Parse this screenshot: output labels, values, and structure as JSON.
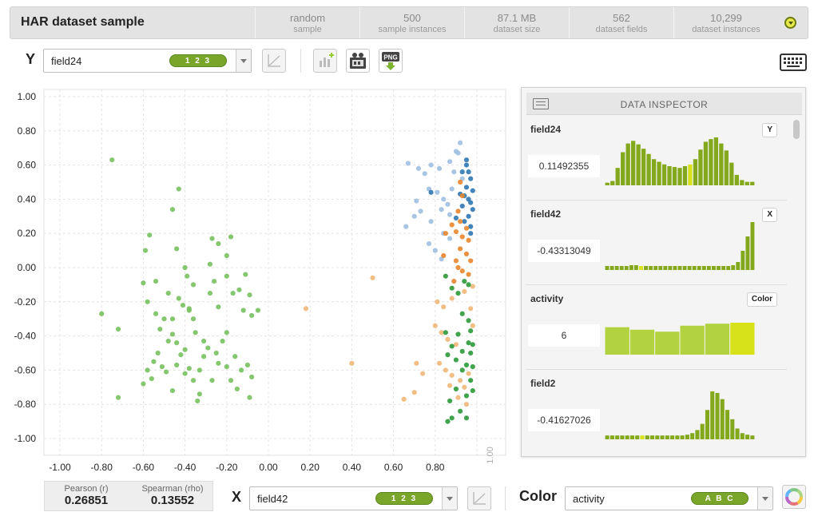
{
  "header": {
    "title": "HAR dataset sample",
    "stats": [
      {
        "value": "random",
        "label": "sample"
      },
      {
        "value": "500",
        "label": "sample instances"
      },
      {
        "value": "87.1 MB",
        "label": "dataset size"
      },
      {
        "value": "562",
        "label": "dataset fields"
      },
      {
        "value": "10,299",
        "label": "dataset instances"
      }
    ]
  },
  "y_axis": {
    "letter": "Y",
    "field": "field24",
    "type_badge": "1 2 3"
  },
  "x_axis": {
    "letter": "X",
    "field": "field42",
    "type_badge": "1 2 3"
  },
  "color": {
    "label": "Color",
    "field": "activity",
    "type_badge": "A B C"
  },
  "toolbar_icons": [
    "regression-line-icon",
    "add-chart-icon",
    "movie-icon",
    "png-export-icon",
    "keyboard-icon"
  ],
  "correlation": {
    "pearson_label": "Pearson (r)",
    "pearson_value": "0.26851",
    "spearman_label": "Spearman (rho)",
    "spearman_value": "0.13552"
  },
  "inspector": {
    "title": "DATA INSPECTOR",
    "fields": [
      {
        "name": "field24",
        "badge": "Y",
        "value": "0.11492355",
        "hist": [
          3,
          5,
          20,
          38,
          48,
          51,
          47,
          42,
          36,
          30,
          27,
          24,
          22,
          21,
          20,
          22,
          24,
          30,
          41,
          50,
          53,
          55,
          48,
          40,
          26,
          12,
          6,
          4,
          4
        ],
        "highlight": 16
      },
      {
        "name": "field42",
        "badge": "X",
        "value": "-0.43313049",
        "hist": [
          5,
          5,
          5,
          5,
          5,
          6,
          6,
          5,
          5,
          5,
          5,
          5,
          5,
          5,
          5,
          5,
          5,
          5,
          5,
          5,
          5,
          5,
          5,
          5,
          5,
          5,
          6,
          10,
          24,
          42,
          60
        ],
        "highlight": 7
      },
      {
        "name": "activity",
        "badge": "Color",
        "value": "6",
        "hist": [
          55,
          50,
          46,
          58,
          62,
          64
        ],
        "highlight": 5
      },
      {
        "name": "field2",
        "badge": "",
        "value": "-0.41627026",
        "hist": [
          5,
          5,
          5,
          5,
          5,
          5,
          5,
          5,
          5,
          5,
          5,
          5,
          5,
          5,
          5,
          5,
          6,
          8,
          12,
          20,
          38,
          62,
          60,
          52,
          38,
          26,
          14,
          8,
          6,
          5
        ],
        "highlight": 7
      }
    ]
  },
  "colors": {
    "green": "#77c15e",
    "light_blue": "#9fbfe0",
    "dark_blue": "#2f78b4",
    "orange": "#e8862e",
    "light_orange": "#f0b878",
    "dark_green": "#2c9a3a"
  },
  "chart_data": {
    "type": "scatter",
    "xlim": [
      -1.0,
      1.0
    ],
    "ylim": [
      -1.0,
      1.0
    ],
    "x_ticks": [
      "-1.00",
      "-0.80",
      "-0.60",
      "-0.40",
      "-0.20",
      "0.00",
      "0.20",
      "0.40",
      "0.60",
      "0.80",
      "1.00"
    ],
    "y_ticks": [
      "1.00",
      "0.80",
      "0.60",
      "0.40",
      "0.20",
      "0.00",
      "-0.20",
      "-0.40",
      "-0.60",
      "-0.80",
      "-1.00"
    ],
    "grid": true,
    "series": [
      {
        "color": "#77c15e",
        "points": [
          [
            -0.75,
            0.63
          ],
          [
            -0.8,
            -0.27
          ],
          [
            -0.72,
            -0.36
          ],
          [
            -0.72,
            -0.76
          ],
          [
            -0.43,
            0.46
          ],
          [
            -0.46,
            0.34
          ],
          [
            -0.57,
            0.19
          ],
          [
            -0.59,
            0.1
          ],
          [
            -0.44,
            0.11
          ],
          [
            -0.4,
            0.0
          ],
          [
            -0.39,
            -0.05
          ],
          [
            -0.6,
            -0.09
          ],
          [
            -0.58,
            -0.2
          ],
          [
            -0.54,
            -0.27
          ],
          [
            -0.5,
            -0.3
          ],
          [
            -0.52,
            -0.36
          ],
          [
            -0.48,
            -0.43
          ],
          [
            -0.44,
            -0.44
          ],
          [
            -0.46,
            -0.3
          ],
          [
            -0.43,
            -0.18
          ],
          [
            -0.41,
            -0.22
          ],
          [
            -0.38,
            -0.25
          ],
          [
            -0.36,
            -0.3
          ],
          [
            -0.35,
            -0.38
          ],
          [
            -0.4,
            -0.48
          ],
          [
            -0.42,
            -0.51
          ],
          [
            -0.44,
            -0.57
          ],
          [
            -0.49,
            -0.61
          ],
          [
            -0.53,
            -0.5
          ],
          [
            -0.55,
            -0.55
          ],
          [
            -0.58,
            -0.6
          ],
          [
            -0.6,
            -0.68
          ],
          [
            -0.56,
            -0.65
          ],
          [
            -0.51,
            -0.58
          ],
          [
            -0.46,
            -0.72
          ],
          [
            -0.38,
            -0.59
          ],
          [
            -0.36,
            -0.66
          ],
          [
            -0.33,
            -0.6
          ],
          [
            -0.31,
            -0.52
          ],
          [
            -0.29,
            -0.47
          ],
          [
            -0.33,
            -0.74
          ],
          [
            -0.34,
            -0.78
          ],
          [
            -0.27,
            -0.66
          ],
          [
            -0.25,
            -0.5
          ],
          [
            -0.22,
            -0.43
          ],
          [
            -0.2,
            -0.38
          ],
          [
            -0.24,
            -0.23
          ],
          [
            -0.28,
            -0.15
          ],
          [
            -0.26,
            -0.08
          ],
          [
            -0.28,
            0.02
          ],
          [
            -0.27,
            0.17
          ],
          [
            -0.24,
            0.14
          ],
          [
            -0.2,
            0.07
          ],
          [
            -0.18,
            0.18
          ],
          [
            -0.17,
            -0.15
          ],
          [
            -0.2,
            -0.05
          ],
          [
            -0.14,
            -0.13
          ],
          [
            -0.12,
            -0.25
          ],
          [
            -0.09,
            -0.16
          ],
          [
            -0.08,
            -0.28
          ],
          [
            -0.05,
            -0.25
          ],
          [
            -0.11,
            -0.04
          ],
          [
            -0.08,
            -0.64
          ],
          [
            -0.09,
            -0.76
          ],
          [
            -0.15,
            -0.71
          ],
          [
            -0.18,
            -0.66
          ],
          [
            -0.2,
            -0.58
          ],
          [
            -0.24,
            -0.56
          ],
          [
            -0.16,
            -0.52
          ],
          [
            -0.13,
            -0.6
          ],
          [
            -0.1,
            -0.57
          ],
          [
            -0.36,
            -0.1
          ],
          [
            -0.38,
            -0.24
          ],
          [
            -0.54,
            -0.08
          ],
          [
            -0.48,
            -0.15
          ],
          [
            -0.4,
            -0.62
          ],
          [
            -0.31,
            -0.43
          ],
          [
            -0.46,
            -0.39
          ]
        ]
      },
      {
        "color": "#9fbfe0",
        "points": [
          [
            0.67,
            0.61
          ],
          [
            0.72,
            0.58
          ],
          [
            0.75,
            0.55
          ],
          [
            0.78,
            0.6
          ],
          [
            0.82,
            0.58
          ],
          [
            0.87,
            0.62
          ],
          [
            0.9,
            0.68
          ],
          [
            0.92,
            0.73
          ],
          [
            0.91,
            0.67
          ],
          [
            0.77,
            0.46
          ],
          [
            0.81,
            0.44
          ],
          [
            0.84,
            0.4
          ],
          [
            0.71,
            0.39
          ],
          [
            0.73,
            0.33
          ],
          [
            0.7,
            0.3
          ],
          [
            0.66,
            0.24
          ],
          [
            0.78,
            0.27
          ],
          [
            0.83,
            0.34
          ],
          [
            0.86,
            0.37
          ],
          [
            0.87,
            0.31
          ],
          [
            0.84,
            0.2
          ],
          [
            0.87,
            0.17
          ],
          [
            0.77,
            0.14
          ],
          [
            0.8,
            0.1
          ],
          [
            0.83,
            0.05
          ],
          [
            0.88,
            0.46
          ],
          [
            0.93,
            0.52
          ],
          [
            0.89,
            0.56
          ]
        ]
      },
      {
        "color": "#2f78b4",
        "points": [
          [
            0.95,
            0.6
          ],
          [
            0.96,
            0.56
          ],
          [
            0.97,
            0.52
          ],
          [
            0.95,
            0.47
          ],
          [
            0.94,
            0.42
          ],
          [
            0.97,
            0.38
          ],
          [
            0.98,
            0.34
          ],
          [
            0.96,
            0.3
          ],
          [
            0.94,
            0.27
          ],
          [
            0.97,
            0.24
          ],
          [
            0.92,
            0.43
          ],
          [
            0.93,
            0.36
          ],
          [
            0.98,
            0.45
          ],
          [
            0.96,
            0.4
          ],
          [
            0.95,
            0.63
          ],
          [
            0.93,
            0.56
          ],
          [
            0.78,
            0.44
          ],
          [
            0.9,
            0.29
          ],
          [
            0.97,
            0.2
          ]
        ]
      },
      {
        "color": "#e8862e",
        "points": [
          [
            0.92,
            0.5
          ],
          [
            0.93,
            0.42
          ],
          [
            0.91,
            0.33
          ],
          [
            0.92,
            0.27
          ],
          [
            0.95,
            0.23
          ],
          [
            0.9,
            0.21
          ],
          [
            0.93,
            0.18
          ],
          [
            0.96,
            0.16
          ],
          [
            0.92,
            0.11
          ],
          [
            0.95,
            0.08
          ],
          [
            0.97,
            0.04
          ],
          [
            0.9,
            0.04
          ],
          [
            0.93,
            -0.02
          ],
          [
            0.96,
            -0.04
          ],
          [
            0.89,
            -0.08
          ],
          [
            0.85,
            0.2
          ],
          [
            0.88,
            0.25
          ],
          [
            0.84,
            0.07
          ],
          [
            0.91,
            0.0
          ]
        ]
      },
      {
        "color": "#f0b878",
        "points": [
          [
            0.5,
            -0.06
          ],
          [
            0.18,
            -0.24
          ],
          [
            0.4,
            -0.56
          ],
          [
            0.71,
            -0.56
          ],
          [
            0.74,
            -0.62
          ],
          [
            0.7,
            -0.73
          ],
          [
            0.65,
            -0.77
          ],
          [
            0.81,
            -0.2
          ],
          [
            0.84,
            -0.23
          ],
          [
            0.88,
            -0.18
          ],
          [
            0.8,
            -0.34
          ],
          [
            0.83,
            -0.38
          ],
          [
            0.86,
            -0.42
          ],
          [
            0.9,
            -0.45
          ],
          [
            0.82,
            -0.56
          ],
          [
            0.85,
            -0.6
          ],
          [
            0.88,
            -0.63
          ],
          [
            0.92,
            -0.66
          ],
          [
            0.96,
            -0.62
          ],
          [
            0.94,
            -0.7
          ],
          [
            0.87,
            -0.69
          ],
          [
            0.91,
            -0.76
          ],
          [
            0.95,
            -0.8
          ],
          [
            0.98,
            -0.34
          ],
          [
            0.97,
            -0.24
          ],
          [
            0.94,
            -0.14
          ],
          [
            0.98,
            -0.11
          ]
        ]
      },
      {
        "color": "#2c9a3a",
        "points": [
          [
            0.85,
            -0.05
          ],
          [
            0.88,
            -0.12
          ],
          [
            0.91,
            -0.15
          ],
          [
            0.94,
            -0.08
          ],
          [
            0.96,
            -0.1
          ],
          [
            0.93,
            -0.27
          ],
          [
            0.96,
            -0.31
          ],
          [
            0.97,
            -0.37
          ],
          [
            0.91,
            -0.39
          ],
          [
            0.88,
            -0.46
          ],
          [
            0.86,
            -0.51
          ],
          [
            0.9,
            -0.54
          ],
          [
            0.93,
            -0.49
          ],
          [
            0.97,
            -0.5
          ],
          [
            0.96,
            -0.44
          ],
          [
            0.95,
            -0.57
          ],
          [
            0.98,
            -0.58
          ],
          [
            0.97,
            -0.66
          ],
          [
            0.98,
            -0.72
          ],
          [
            0.95,
            -0.75
          ],
          [
            0.9,
            -0.71
          ],
          [
            0.87,
            -0.78
          ],
          [
            0.92,
            -0.84
          ],
          [
            0.95,
            -0.88
          ],
          [
            0.88,
            -0.88
          ],
          [
            0.86,
            -0.9
          ],
          [
            0.98,
            -0.45
          ],
          [
            0.85,
            -0.38
          ],
          [
            0.93,
            -0.6
          ]
        ]
      }
    ]
  }
}
